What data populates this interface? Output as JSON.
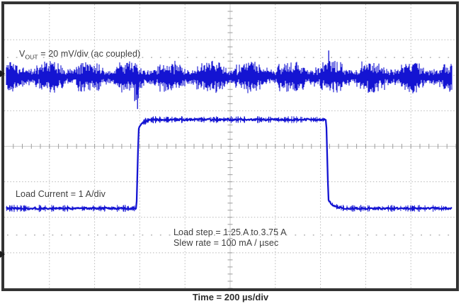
{
  "figure": {
    "kind": "oscilloscope-capture",
    "description": "Load transient response waveform"
  },
  "labels": {
    "vout": {
      "prefix": "V",
      "sub": "OUT",
      "rest": " = 20 mV/div (ac coupled)"
    },
    "load_current": "Load Current = 1 A/div",
    "load_step": "Load step = 1.25 A to 3.75 A",
    "slew_rate": "Slew rate = 100 mA / µsec",
    "time": "Time = 200 µs/div"
  },
  "colors": {
    "trace": "#1414d2",
    "grid": "#b8b8b8",
    "center_line": "#cbcbcb",
    "tick": "#9e9e9e",
    "border": "#333333",
    "text": "#3d3d3d"
  },
  "chart_data": {
    "type": "line",
    "instrument": "oscilloscope",
    "background": "#ffffff",
    "legend_position": "none",
    "grid": {
      "x_divisions": 10,
      "y_divisions": 8,
      "style": "dotted division lines, solid center crosshair with 0.2-div ticks, dotted 0%/100% reference rows at ±2.5 div"
    },
    "x_axis": {
      "label": "Time = 200 µs/div",
      "us_per_division": 200,
      "total_us": 2000
    },
    "series": [
      {
        "name": "VOUT",
        "label": "VOUT = 20 mV/div (ac coupled)",
        "mV_per_division": 20,
        "coupling": "ac",
        "center_div_from_top": 2.05,
        "noise_band_pp_mV": 13,
        "events": [
          {
            "at_div": 2.95,
            "at_us": 590,
            "type": "undershoot",
            "peak_div": -0.9,
            "peak_mV": -18
          },
          {
            "at_div": 7.15,
            "at_us": 1430,
            "type": "overshoot",
            "peak_div": 0.75,
            "peak_mV": 15
          }
        ]
      },
      {
        "name": "Load Current",
        "label": "Load Current = 1 A/div",
        "A_per_division": 1,
        "zero_div_from_top": 7,
        "low_A": 1.25,
        "high_A": 3.75,
        "step_up_at_div": 2.95,
        "step_down_at_div": 7.15,
        "slew_rate_mA_per_us": 100
      }
    ],
    "annotations": [
      "Load step = 1.25 A to 3.75 A",
      "Slew rate = 100 mA / µsec"
    ]
  }
}
